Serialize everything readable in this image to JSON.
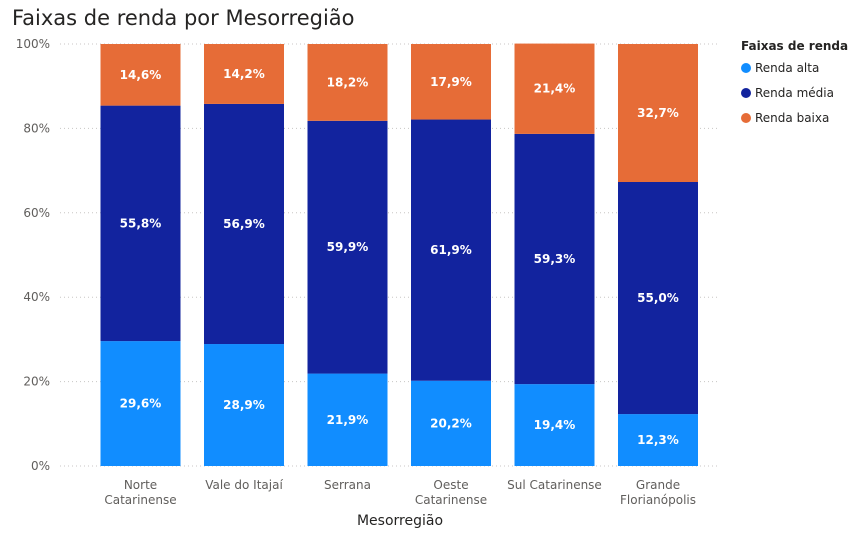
{
  "title": "Faixas de renda por Mesorregião",
  "chart_data": {
    "type": "bar",
    "stacked": true,
    "title": "Faixas de renda por Mesorregião",
    "xlabel": "Mesorregião",
    "ylabel": "",
    "ylim": [
      0,
      100
    ],
    "yticks": [
      "0%",
      "20%",
      "40%",
      "60%",
      "80%",
      "100%"
    ],
    "grid": true,
    "legend_position": "right",
    "legend_title": "Faixas de renda",
    "categories": [
      [
        "Norte",
        "Catarinense"
      ],
      [
        "Vale do Itajaí"
      ],
      [
        "Serrana"
      ],
      [
        "Oeste",
        "Catarinense"
      ],
      [
        "Sul Catarinense"
      ],
      [
        "Grande",
        "Florianópolis"
      ]
    ],
    "series": [
      {
        "name": "Renda alta",
        "color": "#118dff",
        "values": [
          29.6,
          28.9,
          21.9,
          20.2,
          19.4,
          12.3
        ],
        "labels": [
          "29,6%",
          "28,9%",
          "21,9%",
          "20,2%",
          "19,4%",
          "12,3%"
        ]
      },
      {
        "name": "Renda média",
        "color": "#12239e",
        "values": [
          55.8,
          56.9,
          59.9,
          61.9,
          59.3,
          55.0
        ],
        "labels": [
          "55,8%",
          "56,9%",
          "59,9%",
          "61,9%",
          "59,3%",
          "55,0%"
        ]
      },
      {
        "name": "Renda baixa",
        "color": "#e66c37",
        "values": [
          14.6,
          14.2,
          18.2,
          17.9,
          21.4,
          32.7
        ],
        "labels": [
          "14,6%",
          "14,2%",
          "18,2%",
          "17,9%",
          "21,4%",
          "32,7%"
        ]
      }
    ]
  }
}
